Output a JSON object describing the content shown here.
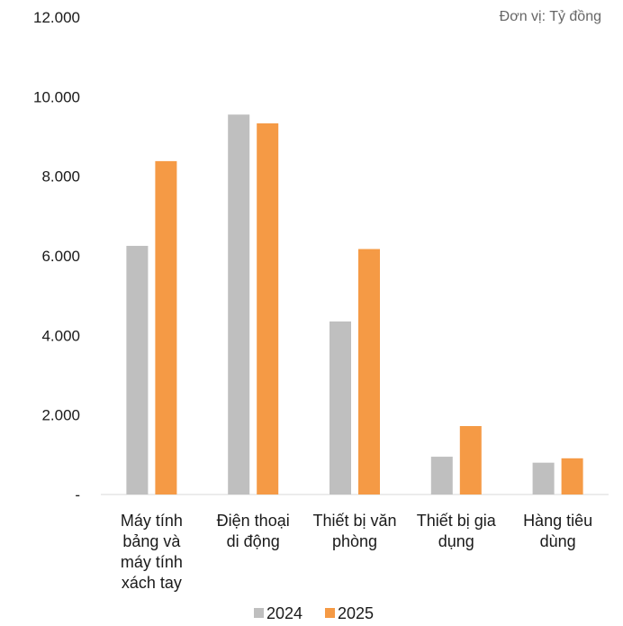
{
  "chart_data": {
    "type": "bar",
    "unit_note": "Đơn vị: Tỷ đồng",
    "categories": [
      [
        "Máy tính",
        "bảng và",
        "máy tính",
        "xách tay"
      ],
      [
        "Điện thoại",
        "di động"
      ],
      [
        "Thiết bị văn",
        "phòng"
      ],
      [
        "Thiết bị gia",
        "dụng"
      ],
      [
        "Hàng tiêu",
        "dùng"
      ]
    ],
    "series": [
      {
        "name": "2024",
        "color": "#bfbfbf",
        "values": [
          6250,
          9550,
          4350,
          950,
          800
        ]
      },
      {
        "name": "2025",
        "color": "#f59a45",
        "values": [
          8380,
          9330,
          6170,
          1720,
          910
        ]
      }
    ],
    "ylim": [
      0,
      12000
    ],
    "yticks": [
      0,
      2000,
      4000,
      6000,
      8000,
      10000,
      12000
    ],
    "ytick_labels": [
      "-",
      "2.000",
      "4.000",
      "6.000",
      "8.000",
      "10.000",
      "12.000"
    ],
    "legend_position": "bottom",
    "grid": false
  }
}
